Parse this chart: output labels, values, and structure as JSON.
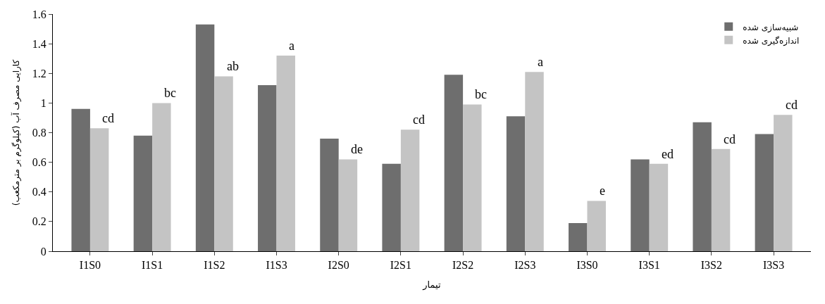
{
  "chart_data": {
    "type": "bar",
    "xlabel": "تیمار",
    "ylabel": "کارایی مصرف آب (کیلوگرم بر مترمکعب)",
    "categories": [
      "I1S0",
      "I1S1",
      "I1S2",
      "I1S3",
      "I2S0",
      "I2S1",
      "I2S2",
      "I2S3",
      "I3S0",
      "I3S1",
      "I3S2",
      "I3S3"
    ],
    "series": [
      {
        "name": "شبیه‌سازی شده",
        "color": "#6e6e6e",
        "values": [
          0.96,
          0.78,
          1.53,
          1.12,
          0.76,
          0.59,
          1.19,
          0.91,
          0.19,
          0.62,
          0.87,
          0.79
        ]
      },
      {
        "name": "اندازه‌گیری شده",
        "color": "#c4c4c4",
        "values": [
          0.83,
          1.0,
          1.18,
          1.32,
          0.62,
          0.82,
          0.99,
          1.21,
          0.34,
          0.59,
          0.69,
          0.92
        ]
      }
    ],
    "annotations": [
      {
        "text": "cd",
        "x": "I1S0",
        "y": 0.83
      },
      {
        "text": "bc",
        "x": "I1S1",
        "y": 1.0
      },
      {
        "text": "ab",
        "x": "I1S2",
        "y": 1.18
      },
      {
        "text": "a",
        "x": "I1S3",
        "y": 1.32
      },
      {
        "text": "de",
        "x": "I2S0",
        "y": 0.62
      },
      {
        "text": "cd",
        "x": "I2S1",
        "y": 0.82
      },
      {
        "text": "bc",
        "x": "I2S2",
        "y": 0.99
      },
      {
        "text": "a",
        "x": "I2S3",
        "y": 1.21
      },
      {
        "text": "e",
        "x": "I3S0",
        "y": 0.34
      },
      {
        "text": "ed",
        "x": "I3S1",
        "y": 0.59
      },
      {
        "text": "cd",
        "x": "I3S2",
        "y": 0.69
      },
      {
        "text": "cd",
        "x": "I3S3",
        "y": 0.92
      }
    ],
    "ylim": [
      0,
      1.6
    ],
    "yticks": [
      0,
      0.2,
      0.4,
      0.6,
      0.8,
      1,
      1.2,
      1.4,
      1.6
    ],
    "legend": "top right"
  }
}
